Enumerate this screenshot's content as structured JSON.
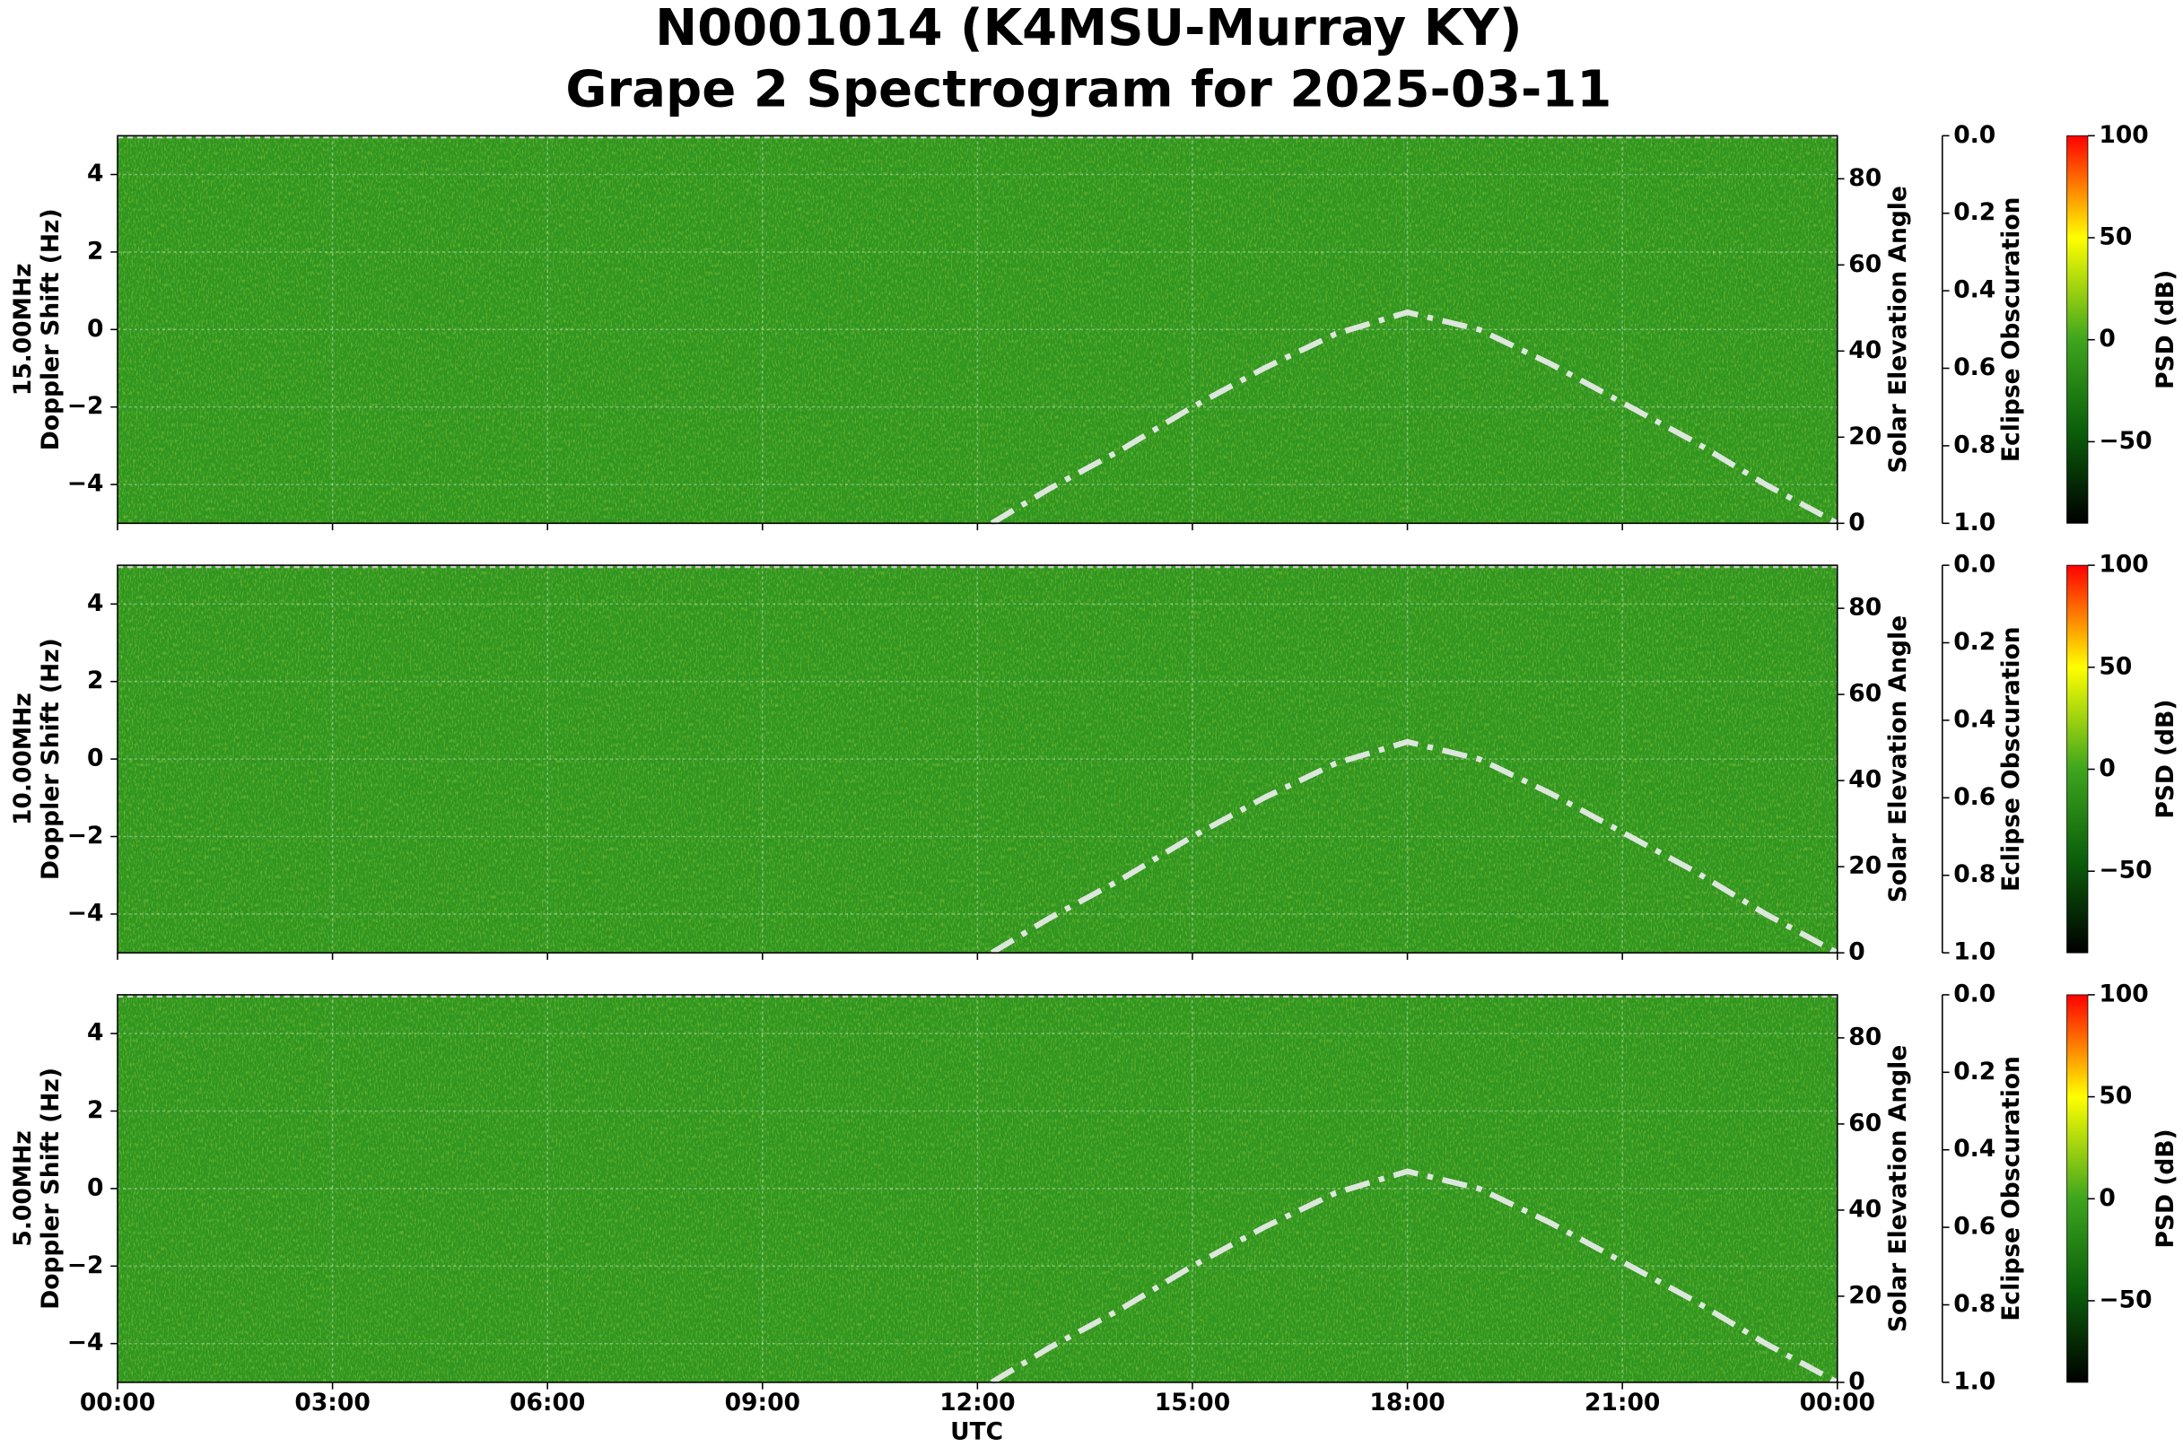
{
  "chart_data": {
    "type": "spectrogram",
    "title": "N0001014 (K4MSU-Murray KY)",
    "subtitle": "Grape 2 Spectrogram for 2025-03-11",
    "xlabel": "UTC",
    "xlim": [
      0,
      24
    ],
    "xticks": [
      {
        "value": 0,
        "label": "00:00"
      },
      {
        "value": 3,
        "label": "03:00"
      },
      {
        "value": 6,
        "label": "06:00"
      },
      {
        "value": 9,
        "label": "09:00"
      },
      {
        "value": 12,
        "label": "12:00"
      },
      {
        "value": 15,
        "label": "15:00"
      },
      {
        "value": 18,
        "label": "18:00"
      },
      {
        "value": 21,
        "label": "21:00"
      },
      {
        "value": 24,
        "label": "00:00"
      }
    ],
    "grid": true,
    "panels": [
      {
        "frequency": "15.00MHz",
        "ylabel": "Doppler Shift (Hz)",
        "ylim": [
          -5,
          5
        ],
        "yticks": [
          {
            "value": -4,
            "label": "−4"
          },
          {
            "value": -2,
            "label": "−2"
          },
          0,
          2,
          4
        ],
        "y2label": "Solar Elevation Angle",
        "y2lim": [
          0,
          90
        ],
        "y2ticks": [
          0,
          20,
          40,
          60,
          80
        ],
        "series": [
          {
            "axis": "y2",
            "color": "#dde6dd",
            "line_style": "dash-dot",
            "x": [
              12.2,
              13,
              14,
              15,
              16,
              17,
              18,
              19,
              20,
              21,
              22,
              23,
              24
            ],
            "values": [
              0,
              8,
              17,
              27,
              36,
              44,
              49,
              45,
              37,
              28,
              19,
              9,
              0
            ]
          }
        ],
        "eclipse_label": "Eclipse Obscuration",
        "eclipse_lim": [
          0,
          1
        ],
        "eclipse_inverted": true,
        "eclipse_ticks": [
          {
            "value": 0,
            "label": "0.0"
          },
          0.2,
          0.4,
          0.6,
          0.8,
          {
            "value": 1,
            "label": "1.0"
          }
        ],
        "colorbar": {
          "label": "PSD (dB)",
          "lim": [
            -90,
            100
          ],
          "ticks": [
            {
              "value": -50,
              "label": "−50"
            },
            0,
            50,
            100
          ],
          "stops": [
            -90,
            -45,
            0,
            50,
            100
          ],
          "colors": [
            "#000000",
            "#0b5e0b",
            "#3ea51e",
            "#ffff00",
            "#ff0000"
          ]
        }
      },
      {
        "frequency": "10.00MHz",
        "ylabel": "Doppler Shift (Hz)",
        "ylim": [
          -5,
          5
        ],
        "yticks": [
          {
            "value": -4,
            "label": "−4"
          },
          {
            "value": -2,
            "label": "−2"
          },
          0,
          2,
          4
        ],
        "y2label": "Solar Elevation Angle",
        "y2lim": [
          0,
          90
        ],
        "y2ticks": [
          0,
          20,
          40,
          60,
          80
        ],
        "series": [
          {
            "axis": "y2",
            "color": "#dde6dd",
            "line_style": "dash-dot",
            "x": [
              12.2,
              13,
              14,
              15,
              16,
              17,
              18,
              19,
              20,
              21,
              22,
              23,
              24
            ],
            "values": [
              0,
              8,
              17,
              27,
              36,
              44,
              49,
              45,
              37,
              28,
              19,
              9,
              0
            ]
          }
        ],
        "eclipse_label": "Eclipse Obscuration",
        "eclipse_lim": [
          0,
          1
        ],
        "eclipse_inverted": true,
        "eclipse_ticks": [
          {
            "value": 0,
            "label": "0.0"
          },
          0.2,
          0.4,
          0.6,
          0.8,
          {
            "value": 1,
            "label": "1.0"
          }
        ],
        "colorbar": {
          "label": "PSD (dB)",
          "lim": [
            -90,
            100
          ],
          "ticks": [
            {
              "value": -50,
              "label": "−50"
            },
            0,
            50,
            100
          ],
          "stops": [
            -90,
            -45,
            0,
            50,
            100
          ],
          "colors": [
            "#000000",
            "#0b5e0b",
            "#3ea51e",
            "#ffff00",
            "#ff0000"
          ]
        }
      },
      {
        "frequency": "5.00MHz",
        "ylabel": "Doppler Shift (Hz)",
        "ylim": [
          -5,
          5
        ],
        "yticks": [
          {
            "value": -4,
            "label": "−4"
          },
          {
            "value": -2,
            "label": "−2"
          },
          0,
          2,
          4
        ],
        "y2label": "Solar Elevation Angle",
        "y2lim": [
          0,
          90
        ],
        "y2ticks": [
          0,
          20,
          40,
          60,
          80
        ],
        "series": [
          {
            "axis": "y2",
            "color": "#dde6dd",
            "line_style": "dash-dot",
            "x": [
              12.2,
              13,
              14,
              15,
              16,
              17,
              18,
              19,
              20,
              21,
              22,
              23,
              24
            ],
            "values": [
              0,
              8,
              17,
              27,
              36,
              44,
              49,
              45,
              37,
              28,
              19,
              9,
              0
            ]
          }
        ],
        "eclipse_label": "Eclipse Obscuration",
        "eclipse_lim": [
          0,
          1
        ],
        "eclipse_inverted": true,
        "eclipse_ticks": [
          {
            "value": 0,
            "label": "0.0"
          },
          0.2,
          0.4,
          0.6,
          0.8,
          {
            "value": 1,
            "label": "1.0"
          }
        ],
        "colorbar": {
          "label": "PSD (dB)",
          "lim": [
            -90,
            100
          ],
          "ticks": [
            {
              "value": -50,
              "label": "−50"
            },
            0,
            50,
            100
          ],
          "stops": [
            -90,
            -45,
            0,
            50,
            100
          ],
          "colors": [
            "#000000",
            "#0b5e0b",
            "#3ea51e",
            "#ffff00",
            "#ff0000"
          ]
        }
      }
    ]
  }
}
